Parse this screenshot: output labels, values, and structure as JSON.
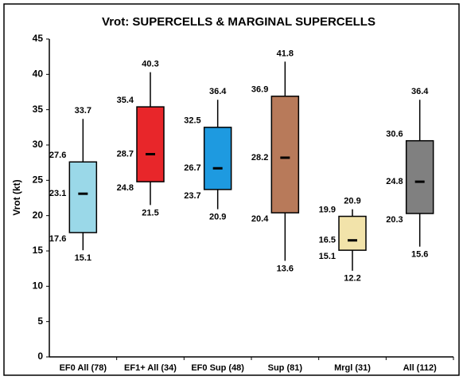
{
  "chart_data": {
    "type": "box",
    "title": "Vrot: SUPERCELLS & MARGINAL SUPERCELLS",
    "y_label": "Vrot (kt)",
    "categories": [
      "EF0 All (78)",
      "EF1+ All (34)",
      "EF0 Sup (48)",
      "Sup (81)",
      "Mrgl (31)",
      "All (112)"
    ],
    "min": [
      15.1,
      21.5,
      20.9,
      13.6,
      12.2,
      15.6
    ],
    "q1": [
      17.6,
      24.8,
      23.7,
      20.4,
      15.1,
      20.3
    ],
    "median": [
      23.1,
      28.7,
      26.7,
      28.2,
      16.5,
      24.8
    ],
    "q3": [
      27.6,
      35.4,
      32.5,
      36.9,
      19.9,
      30.6
    ],
    "max": [
      33.7,
      40.3,
      36.4,
      41.8,
      20.9,
      36.4
    ],
    "colors": [
      "#9ad8e8",
      "#e8262a",
      "#1e9ae0",
      "#b87a5a",
      "#f2e3aa",
      "#808080"
    ],
    "ylim": [
      0,
      45
    ],
    "yticks": [
      0,
      5,
      10,
      15,
      20,
      25,
      30,
      35,
      40,
      45
    ],
    "grid": false
  }
}
